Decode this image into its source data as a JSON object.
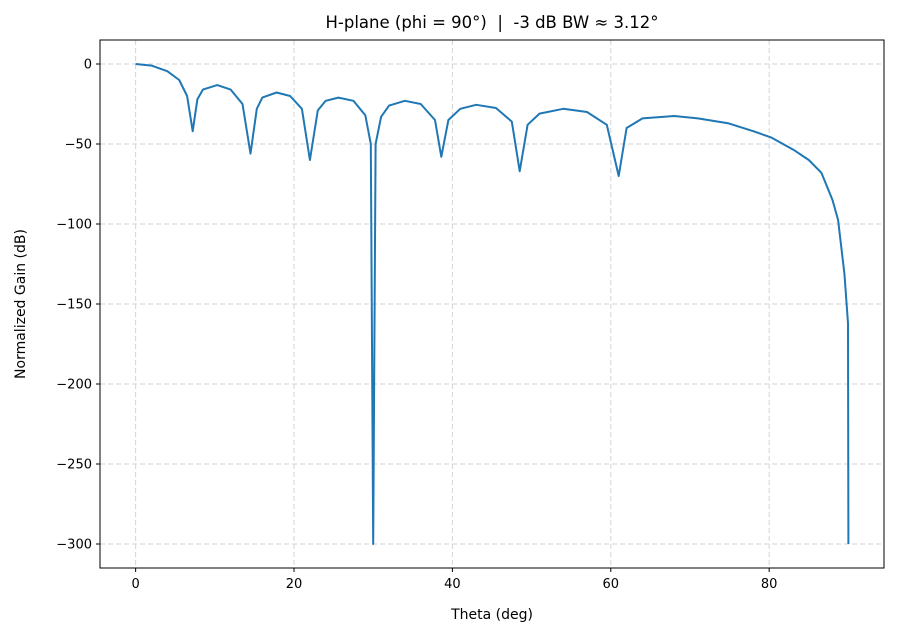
{
  "chart_data": {
    "type": "line",
    "title": "H-plane (phi = 90°)  |  -3 dB BW ≈ 3.12°",
    "xlabel": "Theta (deg)",
    "ylabel": "Normalized Gain (dB)",
    "xlim": [
      -4.5,
      94.5
    ],
    "ylim": [
      -315,
      15
    ],
    "xticks": [
      0,
      20,
      40,
      60,
      80
    ],
    "yticks": [
      0,
      -50,
      -100,
      -150,
      -200,
      -250,
      -300
    ],
    "ytick_labels": [
      "0",
      "−50",
      "−100",
      "−150",
      "−200",
      "−250",
      "−300"
    ],
    "grid": true,
    "grid_style": "dashed",
    "color": "#1f77b4",
    "series": [
      {
        "x": [
          0,
          2,
          4,
          5.5,
          6.5,
          7.2,
          7.8,
          8.5,
          10.3,
          12,
          13.5,
          14.5,
          15.3,
          16,
          17.8,
          19.5,
          21,
          22,
          23,
          24,
          25.6,
          27.5,
          29,
          29.7,
          30,
          30.3,
          31,
          32,
          34,
          36,
          37.8,
          38.6,
          39.5,
          41,
          43,
          45.5,
          47.5,
          48.5,
          49.5,
          51,
          54,
          57,
          59.5,
          61,
          62,
          64,
          68,
          71,
          74.8,
          78,
          80.3,
          83.2,
          85,
          86.6,
          88,
          88.7,
          89.5,
          89.96,
          90
        ],
        "y": [
          0,
          -1,
          -4.5,
          -10,
          -20,
          -42,
          -22,
          -16,
          -13.2,
          -16,
          -25,
          -56,
          -28,
          -21,
          -17.8,
          -20,
          -28,
          -60,
          -29,
          -23,
          -21,
          -23,
          -32,
          -50,
          -300,
          -50,
          -33,
          -26,
          -23,
          -25,
          -35,
          -58,
          -35,
          -28,
          -25.5,
          -27.5,
          -36,
          -67,
          -38,
          -31,
          -28,
          -30,
          -38,
          -70,
          -40,
          -34,
          -32.5,
          -34,
          -37,
          -42,
          -46,
          -54,
          -60,
          -68,
          -85,
          -97.5,
          -131,
          -162,
          -300
        ]
      }
    ]
  }
}
